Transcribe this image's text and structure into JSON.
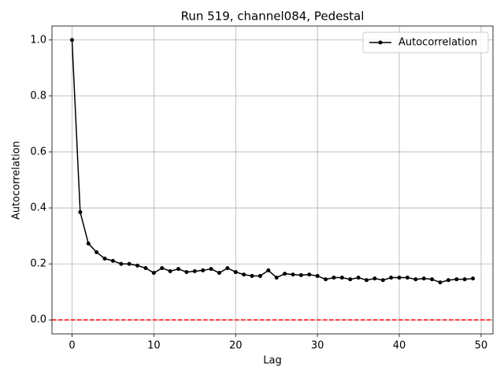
{
  "chart_data": {
    "type": "line",
    "title": "Run 519, channel084, Pedestal",
    "x_label": "Lag",
    "y_label": "Autocorrelation",
    "x": [
      0,
      1,
      2,
      3,
      4,
      5,
      6,
      7,
      8,
      9,
      10,
      11,
      12,
      13,
      14,
      15,
      16,
      17,
      18,
      19,
      20,
      21,
      22,
      23,
      24,
      25,
      26,
      27,
      28,
      29,
      30,
      31,
      32,
      33,
      34,
      35,
      36,
      37,
      38,
      39,
      40,
      41,
      42,
      43,
      44,
      45,
      46,
      47,
      48,
      49
    ],
    "series": [
      {
        "name": "Autocorrelation",
        "color": "#000000",
        "values": [
          1.0,
          0.385,
          0.273,
          0.242,
          0.219,
          0.211,
          0.2,
          0.2,
          0.194,
          0.185,
          0.168,
          0.185,
          0.174,
          0.182,
          0.171,
          0.174,
          0.177,
          0.182,
          0.168,
          0.185,
          0.171,
          0.162,
          0.157,
          0.157,
          0.177,
          0.151,
          0.165,
          0.162,
          0.16,
          0.162,
          0.157,
          0.145,
          0.151,
          0.151,
          0.145,
          0.151,
          0.142,
          0.148,
          0.142,
          0.151,
          0.151,
          0.151,
          0.145,
          0.148,
          0.145,
          0.134,
          0.142,
          0.145,
          0.145,
          0.148
        ]
      }
    ],
    "hline": {
      "value": 0,
      "color": "#ff0000"
    },
    "xlim": [
      -2.45,
      51.45
    ],
    "xticks": [
      0,
      10,
      20,
      30,
      40,
      50
    ],
    "ylim": [
      -0.05,
      1.05
    ],
    "yticks": [
      {
        "value": 0,
        "label": "0.0"
      },
      0.2,
      0.4,
      0.6,
      0.8,
      {
        "value": 1,
        "label": "1.0"
      }
    ],
    "grid": true,
    "legend": "upper right"
  }
}
